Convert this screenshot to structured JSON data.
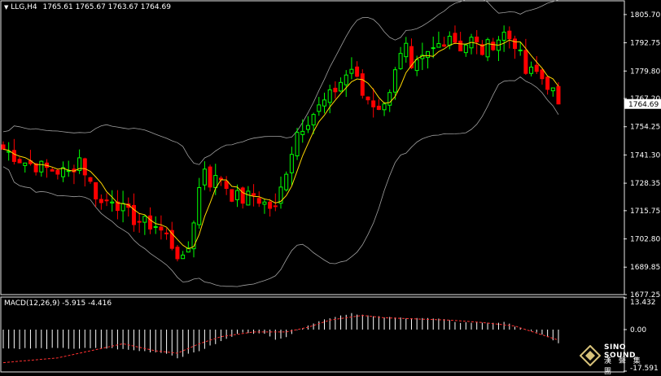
{
  "header": {
    "menu_glyph": "▼",
    "symbol": "LLG,H4",
    "ohlc": "1765.61 1765.67 1763.67 1764.69"
  },
  "colors": {
    "background": "#000000",
    "up_candle": "#00ff00",
    "down_candle": "#ff0000",
    "ma": "#ffd700",
    "bands": "#a0a0a0",
    "macd_hist": "#ffffff",
    "macd_signal": "#ff3030",
    "price_tag_bg": "#ffffff"
  },
  "watermark": {
    "brand": "SINO SOUND",
    "sub": "漢 聲 集 團",
    "icon": "diamond-logo-icon"
  },
  "chart_data": [
    {
      "type": "candlestick",
      "ylim": [
        1677.25,
        1812
      ],
      "price_ticks": [
        1805.7,
        1792.75,
        1779.8,
        1767.2,
        1754.25,
        1741.3,
        1728.35,
        1715.75,
        1702.8,
        1689.85,
        1677.25
      ],
      "current_price": "1764.69",
      "current_price_value": 1764.69,
      "indicators": [
        "moving average (yellow)",
        "Bollinger bands (grey)"
      ],
      "close_path": [
        [
          0,
          1744
        ],
        [
          4,
          1738
        ],
        [
          8,
          1735
        ],
        [
          12,
          1733
        ],
        [
          14,
          1740
        ],
        [
          16,
          1728
        ],
        [
          18,
          1719
        ],
        [
          20,
          1722
        ],
        [
          22,
          1716
        ],
        [
          24,
          1712
        ],
        [
          26,
          1710
        ],
        [
          28,
          1709
        ],
        [
          30,
          1704
        ],
        [
          32,
          1696
        ],
        [
          33,
          1692
        ],
        [
          34,
          1699
        ],
        [
          35,
          1712
        ],
        [
          36,
          1726
        ],
        [
          37,
          1736
        ],
        [
          38,
          1729
        ],
        [
          40,
          1731
        ],
        [
          42,
          1723
        ],
        [
          44,
          1721
        ],
        [
          46,
          1723
        ],
        [
          48,
          1719
        ],
        [
          50,
          1716
        ],
        [
          52,
          1735
        ],
        [
          54,
          1752
        ],
        [
          56,
          1758
        ],
        [
          58,
          1763
        ],
        [
          60,
          1768
        ],
        [
          62,
          1775
        ],
        [
          64,
          1781
        ],
        [
          66,
          1769
        ],
        [
          68,
          1765
        ],
        [
          70,
          1763
        ],
        [
          72,
          1782
        ],
        [
          74,
          1790
        ],
        [
          75,
          1778
        ],
        [
          76,
          1782
        ],
        [
          78,
          1787
        ],
        [
          80,
          1792
        ],
        [
          82,
          1797
        ],
        [
          84,
          1791
        ],
        [
          86,
          1794
        ],
        [
          88,
          1789
        ],
        [
          90,
          1793
        ],
        [
          92,
          1797
        ],
        [
          94,
          1793
        ],
        [
          96,
          1779
        ],
        [
          98,
          1779
        ],
        [
          100,
          1774
        ],
        [
          101,
          1770
        ],
        [
          102,
          1764.69
        ]
      ]
    },
    {
      "type": "histogram",
      "label": "MACD(12,26,9) -5.915 -4.416",
      "ylim": [
        -17.591,
        13.432
      ],
      "ticks": [
        "13.432",
        "0.00",
        "-17.591"
      ],
      "histogram": [
        [
          0,
          -8
        ],
        [
          20,
          -8
        ],
        [
          30,
          -10
        ],
        [
          32,
          -12
        ],
        [
          36,
          -9
        ],
        [
          40,
          -5
        ],
        [
          44,
          -1
        ],
        [
          48,
          -2
        ],
        [
          50,
          -4
        ],
        [
          52,
          -3
        ],
        [
          56,
          2
        ],
        [
          60,
          5
        ],
        [
          64,
          7
        ],
        [
          68,
          5.5
        ],
        [
          72,
          5
        ],
        [
          76,
          5
        ],
        [
          80,
          4.5
        ],
        [
          84,
          3
        ],
        [
          88,
          3
        ],
        [
          92,
          3
        ],
        [
          96,
          0
        ],
        [
          100,
          -3
        ],
        [
          102,
          -5.915
        ]
      ],
      "signal": [
        [
          0,
          -14
        ],
        [
          10,
          -12
        ],
        [
          16,
          -9
        ],
        [
          22,
          -6
        ],
        [
          28,
          -9
        ],
        [
          32,
          -10
        ],
        [
          36,
          -6
        ],
        [
          40,
          -3
        ],
        [
          46,
          -1
        ],
        [
          52,
          -1
        ],
        [
          56,
          1
        ],
        [
          60,
          4
        ],
        [
          66,
          6
        ],
        [
          70,
          5
        ],
        [
          76,
          4.5
        ],
        [
          82,
          4
        ],
        [
          88,
          3
        ],
        [
          94,
          1.5
        ],
        [
          98,
          -1.5
        ],
        [
          102,
          -4.416
        ]
      ]
    }
  ]
}
